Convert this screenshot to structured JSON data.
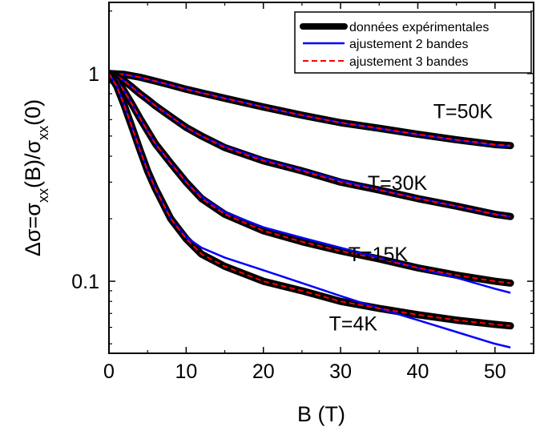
{
  "chart_data": {
    "type": "line",
    "xlabel": "B (T)",
    "ylabel": "Δσ=σxx(B)/σxx(0)",
    "ylabel_parts": [
      "Δσ=σ",
      "xx",
      "(B)/σ",
      "xx",
      "(0)"
    ],
    "xlim": [
      0,
      55
    ],
    "ylim": [
      0.045,
      2.2
    ],
    "yscale": "log",
    "xticks": [
      0,
      10,
      20,
      30,
      40,
      50
    ],
    "yticks": [
      {
        "value": 1,
        "label": "1"
      },
      {
        "value": 0.1,
        "label": "0.1"
      }
    ],
    "legend_position": "top-right",
    "series": [
      {
        "name": "données expérimentales",
        "color": "#000000",
        "style": "thick"
      },
      {
        "name": "ajustement 2 bandes",
        "color": "#0000ff",
        "style": "solid"
      },
      {
        "name": "ajustement 3 bandes",
        "color": "#ff0000",
        "style": "dashed"
      }
    ],
    "curves": [
      {
        "label": "T=50K",
        "x": [
          0,
          2,
          4,
          6,
          8,
          10,
          15,
          20,
          25,
          30,
          35,
          40,
          45,
          50,
          52
        ],
        "experimental": [
          1.0,
          0.99,
          0.96,
          0.92,
          0.88,
          0.84,
          0.76,
          0.69,
          0.63,
          0.58,
          0.545,
          0.51,
          0.48,
          0.455,
          0.45
        ],
        "fit_2_bands": [
          1.0,
          0.99,
          0.96,
          0.92,
          0.88,
          0.84,
          0.76,
          0.69,
          0.63,
          0.58,
          0.543,
          0.508,
          0.478,
          0.452,
          0.447
        ],
        "fit_3_bands": [
          1.0,
          0.99,
          0.96,
          0.92,
          0.88,
          0.84,
          0.76,
          0.69,
          0.63,
          0.58,
          0.545,
          0.51,
          0.48,
          0.455,
          0.45
        ]
      },
      {
        "label": "T=30K",
        "x": [
          0,
          1,
          2,
          3,
          4,
          5,
          6,
          8,
          10,
          12,
          15,
          20,
          25,
          30,
          35,
          40,
          45,
          50,
          52
        ],
        "experimental": [
          1.0,
          0.97,
          0.92,
          0.86,
          0.8,
          0.75,
          0.7,
          0.62,
          0.55,
          0.5,
          0.44,
          0.38,
          0.34,
          0.3,
          0.275,
          0.25,
          0.23,
          0.21,
          0.205
        ],
        "fit_2_bands": [
          1.0,
          0.97,
          0.92,
          0.86,
          0.8,
          0.75,
          0.7,
          0.62,
          0.55,
          0.5,
          0.445,
          0.385,
          0.343,
          0.305,
          0.276,
          0.251,
          0.23,
          0.21,
          0.205
        ],
        "fit_3_bands": [
          1.0,
          0.97,
          0.92,
          0.86,
          0.8,
          0.75,
          0.7,
          0.62,
          0.55,
          0.5,
          0.44,
          0.38,
          0.34,
          0.3,
          0.275,
          0.25,
          0.23,
          0.21,
          0.205
        ]
      },
      {
        "label": "T=15K",
        "x": [
          0,
          1,
          2,
          3,
          4,
          5,
          6,
          8,
          10,
          12,
          15,
          20,
          25,
          30,
          35,
          40,
          45,
          50,
          52
        ],
        "experimental": [
          1.0,
          0.93,
          0.82,
          0.71,
          0.61,
          0.53,
          0.46,
          0.37,
          0.3,
          0.25,
          0.21,
          0.175,
          0.155,
          0.14,
          0.128,
          0.116,
          0.107,
          0.1,
          0.098
        ],
        "fit_2_bands": [
          1.0,
          0.93,
          0.82,
          0.71,
          0.61,
          0.53,
          0.46,
          0.37,
          0.3,
          0.255,
          0.215,
          0.182,
          0.162,
          0.145,
          0.13,
          0.116,
          0.104,
          0.092,
          0.088
        ],
        "fit_3_bands": [
          1.0,
          0.93,
          0.82,
          0.71,
          0.61,
          0.53,
          0.46,
          0.37,
          0.3,
          0.25,
          0.21,
          0.175,
          0.155,
          0.14,
          0.128,
          0.116,
          0.107,
          0.1,
          0.098
        ]
      },
      {
        "label": "T=4K",
        "x": [
          0,
          1,
          2,
          3,
          4,
          5,
          6,
          8,
          10,
          12,
          15,
          20,
          25,
          30,
          35,
          40,
          45,
          50,
          52
        ],
        "experimental": [
          1.0,
          0.87,
          0.7,
          0.55,
          0.43,
          0.34,
          0.28,
          0.2,
          0.16,
          0.135,
          0.118,
          0.1,
          0.09,
          0.08,
          0.074,
          0.069,
          0.065,
          0.062,
          0.061
        ],
        "fit_2_bands": [
          1.0,
          0.87,
          0.7,
          0.55,
          0.43,
          0.34,
          0.28,
          0.2,
          0.163,
          0.145,
          0.13,
          0.113,
          0.098,
          0.085,
          0.074,
          0.065,
          0.057,
          0.05,
          0.048
        ],
        "fit_3_bands": [
          1.0,
          0.87,
          0.7,
          0.55,
          0.43,
          0.34,
          0.28,
          0.2,
          0.16,
          0.135,
          0.118,
          0.1,
          0.09,
          0.08,
          0.074,
          0.069,
          0.065,
          0.062,
          0.061
        ]
      }
    ]
  }
}
